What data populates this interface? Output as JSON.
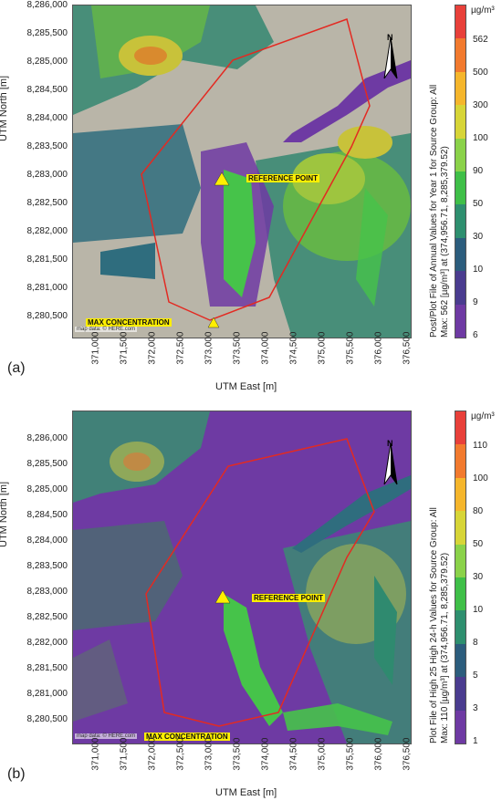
{
  "panels": [
    {
      "letter": "(a)",
      "y_axis_label": "UTM North [m]",
      "x_axis_label": "UTM East [m]",
      "y_ticks": [
        "8,286,000",
        "8,285,500",
        "8,285,000",
        "8,284,500",
        "8,284,000",
        "8,283,500",
        "8,283,000",
        "8,282,500",
        "8,282,000",
        "8,281,500",
        "8,281,000",
        "8,280,500"
      ],
      "x_ticks": [
        "371,000",
        "371,500",
        "372,000",
        "372,500",
        "373,000",
        "373,500",
        "374,000",
        "374,500",
        "375,000",
        "375,500",
        "376,000",
        "376,500"
      ],
      "colorbar_unit": "µg/m³",
      "colorbar_ticks": [
        "562",
        "500",
        "300",
        "100",
        "90",
        "50",
        "30",
        "10",
        "9",
        "6"
      ],
      "colorbar_colors": [
        "#e8403a",
        "#f27a2e",
        "#f5b62c",
        "#d7d538",
        "#8bd24a",
        "#3fbf48",
        "#2e8f6f",
        "#2c5d7d",
        "#4a3c8f",
        "#6e3aa3"
      ],
      "colorbar_title_line1": "Post/Plot File of Annual Values for Year 1 for Source Group: All",
      "colorbar_title_line2": "Max: 562 [µg/m³] at (374,956.71, 8,285,379.52)",
      "reference_label": "REFERENCE POINT",
      "max_label": "MAX CONCENTRATION",
      "map_credit": "map data: © HERE.com",
      "north_label": "N"
    },
    {
      "letter": "(b)",
      "y_axis_label": "UTM North [m]",
      "x_axis_label": "UTM East [m]",
      "y_ticks": [
        "8,286,000",
        "8,285,500",
        "8,285,000",
        "8,284,500",
        "8,284,000",
        "8,283,500",
        "8,283,000",
        "8,282,500",
        "8,282,000",
        "8,281,500",
        "8,281,000",
        "8,280,500"
      ],
      "x_ticks": [
        "371,000",
        "371,500",
        "372,000",
        "372,500",
        "373,000",
        "373,500",
        "374,000",
        "374,500",
        "375,000",
        "375,500",
        "376,000",
        "376,500"
      ],
      "colorbar_unit": "µg/m³",
      "colorbar_ticks": [
        "110",
        "100",
        "80",
        "50",
        "30",
        "10",
        "8",
        "5",
        "3",
        "1"
      ],
      "colorbar_colors": [
        "#e8403a",
        "#f27a2e",
        "#f5b62c",
        "#d7d538",
        "#8bd24a",
        "#3fbf48",
        "#2e8f6f",
        "#2c5d7d",
        "#4a3c8f",
        "#6e3aa3"
      ],
      "colorbar_title_line1": "Plot File of High 25 High 24-h Values for Source Group: All",
      "colorbar_title_line2": "Max: 110 [µg/m³] at (374,956.71, 8,285,379.52)",
      "reference_label": "REFERENCE POINT",
      "max_label": "MAX CONCENTRATION",
      "map_credit": "map data: © HERE.com",
      "north_label": "N"
    }
  ]
}
